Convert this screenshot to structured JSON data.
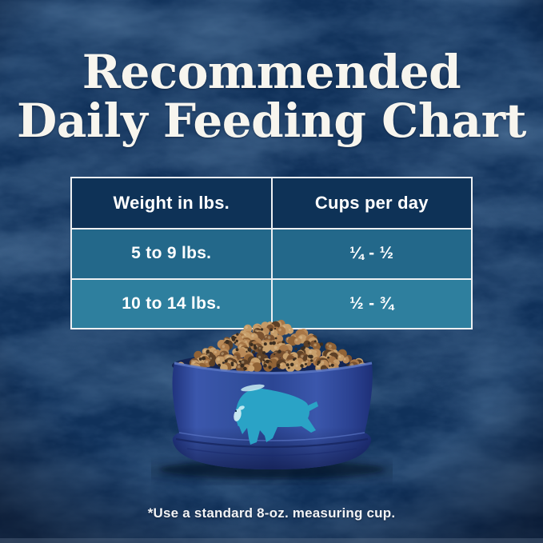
{
  "title": {
    "line1": "Recommended",
    "line2": "Daily Feeding Chart"
  },
  "chart_data": {
    "type": "table",
    "title": "Recommended Daily Feeding Chart",
    "columns": [
      "Weight in lbs.",
      "Cups per day"
    ],
    "rows": [
      [
        "5 to 9 lbs.",
        "¼ - ½"
      ],
      [
        "10 to 14 lbs.",
        "½ - ¾"
      ]
    ],
    "footnote": "*Use a standard 8-oz. measuring cup."
  },
  "footnote": "*Use a standard 8-oz. measuring cup.",
  "illustration": {
    "description": "Royal blue dog bowl filled with brown kibble, teal leaping bison logo on front",
    "icons": [
      "bison-logo-icon",
      "kibble",
      "dog-bowl"
    ]
  },
  "colors": {
    "background": "#10315a",
    "text": "#f7f5ee",
    "table_header": "#0e3257",
    "table_row1": "#23688a",
    "table_row2": "#2e7f9e",
    "table_border": "#eef0f2",
    "bowl_blue": "#2f4899",
    "bison_teal": "#2aa3c6",
    "kibble": [
      "#b98a58",
      "#a87747",
      "#c49a67",
      "#916336",
      "#7a5230",
      "#5d4026",
      "#c8a06c"
    ],
    "kibble_speck": "#3a2d20"
  }
}
